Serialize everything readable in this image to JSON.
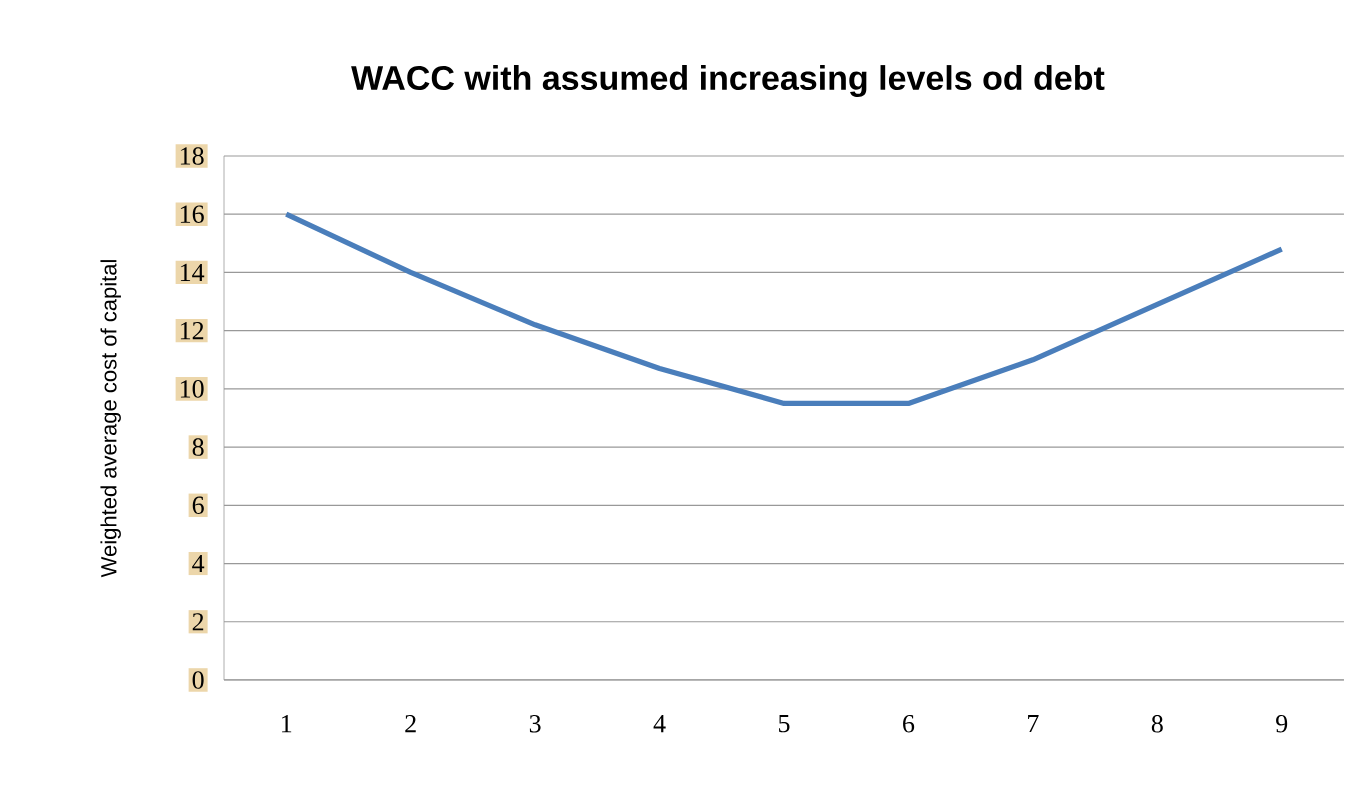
{
  "chart_data": {
    "type": "line",
    "title": "WACC  with assumed increasing levels od debt",
    "ylabel": "Weighted average  cost  of capital",
    "categories": [
      "1",
      "2",
      "3",
      "4",
      "5",
      "6",
      "7",
      "8",
      "9"
    ],
    "series": [
      {
        "color": "#4a7ebb",
        "values": [
          16,
          14,
          12.2,
          10.7,
          9.5,
          9.5,
          11,
          12.9,
          14.8
        ]
      }
    ],
    "ylim": [
      0,
      18
    ],
    "yticks": [
      0,
      2,
      4,
      6,
      8,
      10,
      12,
      14,
      16,
      18
    ],
    "grid": "y",
    "marker": "none",
    "line_style": "solid"
  }
}
